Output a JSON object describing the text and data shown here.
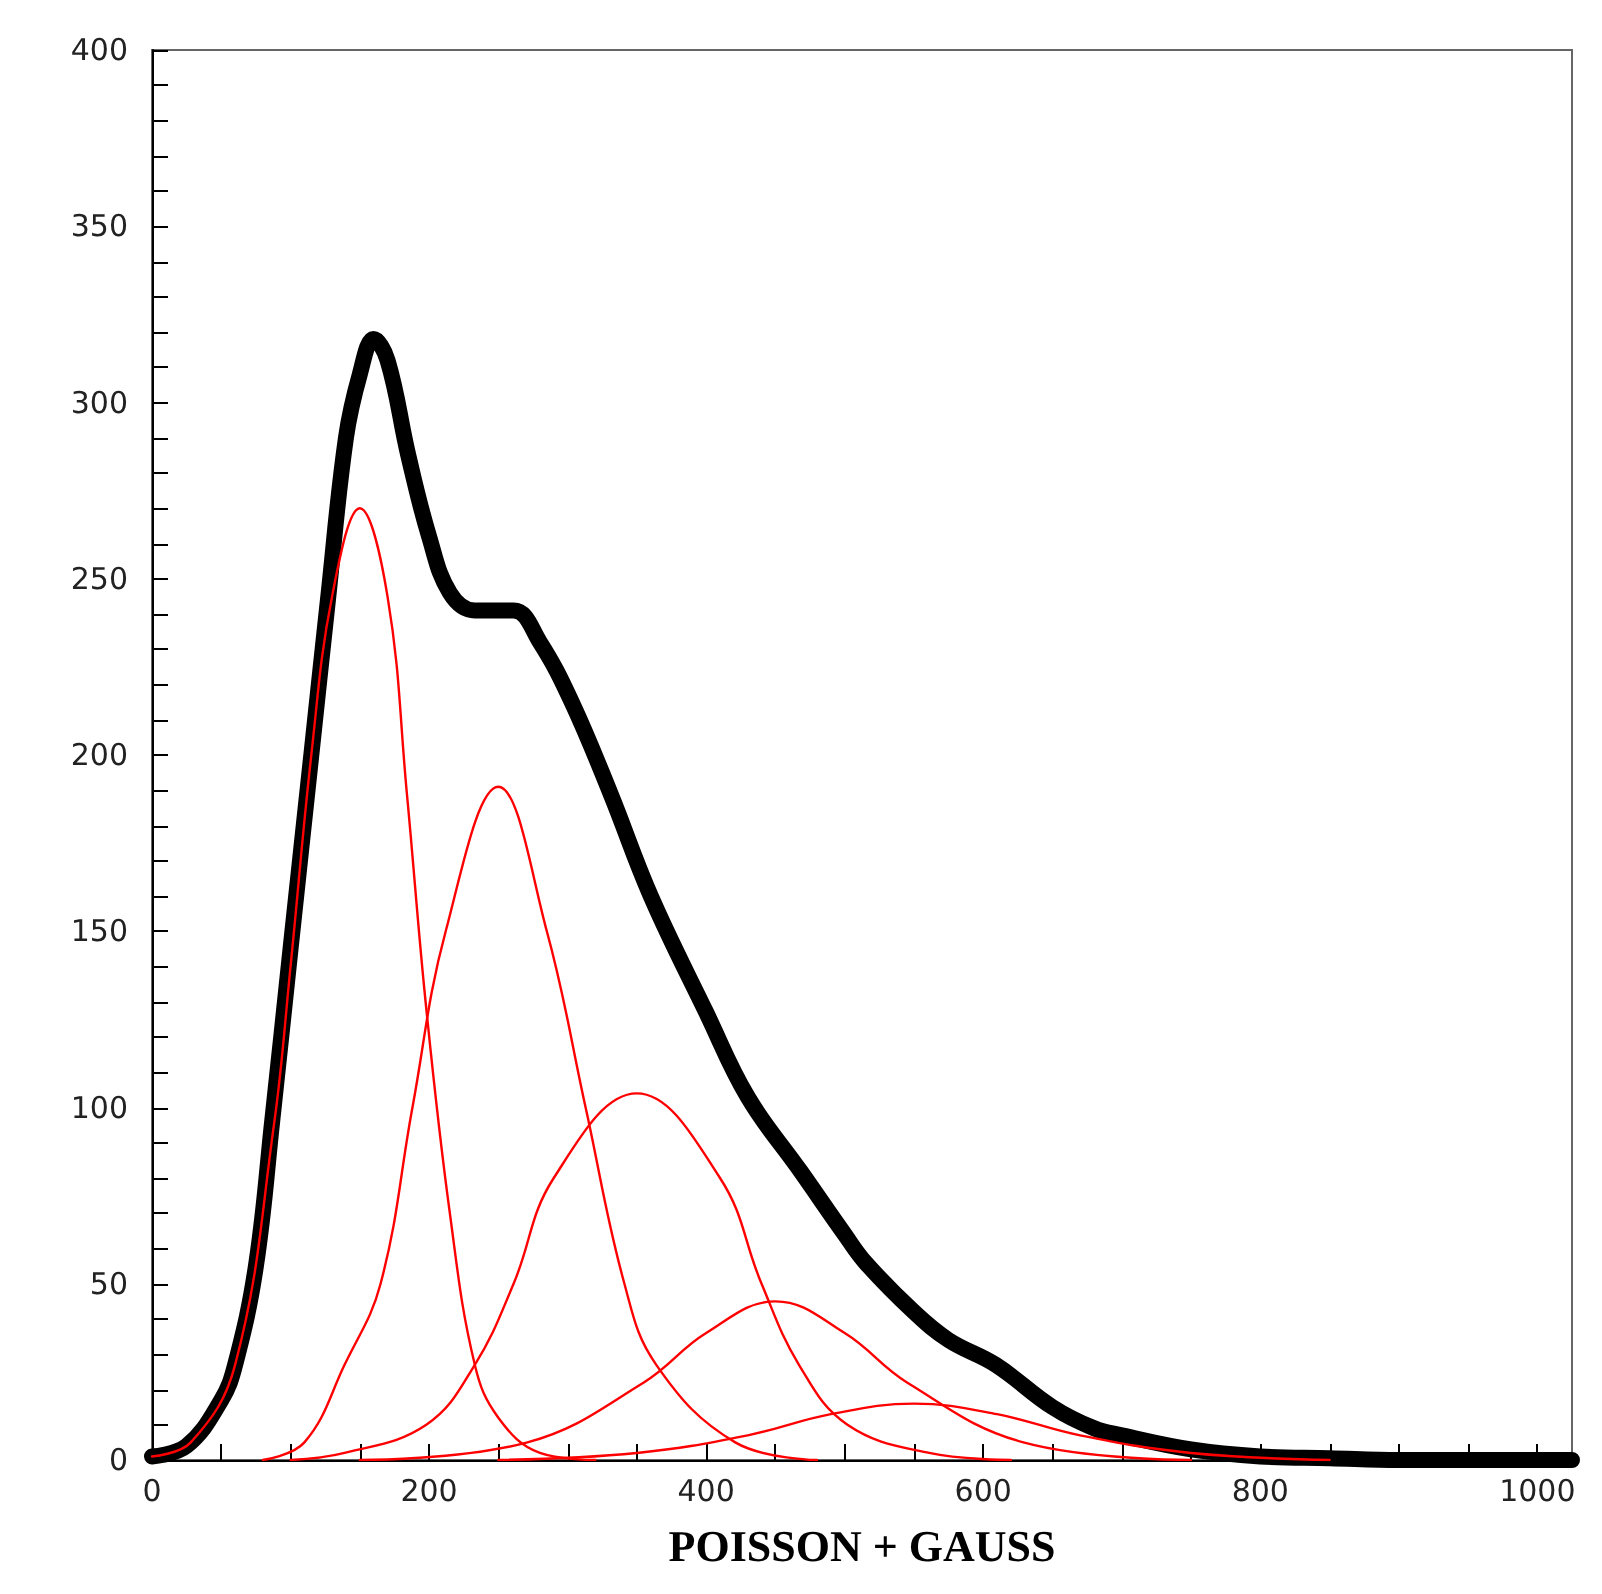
{
  "chart_data": {
    "type": "line",
    "xlabel": "POISSON + GAUSS",
    "xlim": [
      0,
      1025
    ],
    "ylim": [
      0,
      400
    ],
    "xticks": [
      0,
      {
        "value": 50,
        "label": null
      },
      200,
      {
        "value": 100,
        "label": null
      },
      {
        "value": 150,
        "label": null
      },
      {
        "value": 250,
        "label": null
      },
      {
        "value": 300,
        "label": null
      },
      {
        "value": 350,
        "label": null
      },
      400,
      {
        "value": 450,
        "label": null
      },
      {
        "value": 500,
        "label": null
      },
      {
        "value": 550,
        "label": null
      },
      600,
      {
        "value": 650,
        "label": null
      },
      {
        "value": 700,
        "label": null
      },
      {
        "value": 750,
        "label": null
      },
      800,
      {
        "value": 850,
        "label": null
      },
      {
        "value": 900,
        "label": null
      },
      {
        "value": 950,
        "label": null
      },
      1000
    ],
    "yticks": [
      0,
      {
        "value": 10,
        "label": null
      },
      {
        "value": 20,
        "label": null
      },
      {
        "value": 30,
        "label": null
      },
      {
        "value": 40,
        "label": null
      },
      50,
      {
        "value": 60,
        "label": null
      },
      {
        "value": 70,
        "label": null
      },
      {
        "value": 80,
        "label": null
      },
      {
        "value": 90,
        "label": null
      },
      100,
      {
        "value": 110,
        "label": null
      },
      {
        "value": 120,
        "label": null
      },
      {
        "value": 130,
        "label": null
      },
      {
        "value": 140,
        "label": null
      },
      150,
      {
        "value": 160,
        "label": null
      },
      {
        "value": 170,
        "label": null
      },
      {
        "value": 180,
        "label": null
      },
      {
        "value": 190,
        "label": null
      },
      200,
      {
        "value": 210,
        "label": null
      },
      {
        "value": 220,
        "label": null
      },
      {
        "value": 230,
        "label": null
      },
      {
        "value": 240,
        "label": null
      },
      250,
      {
        "value": 260,
        "label": null
      },
      {
        "value": 270,
        "label": null
      },
      {
        "value": 280,
        "label": null
      },
      {
        "value": 290,
        "label": null
      },
      300,
      {
        "value": 310,
        "label": null
      },
      {
        "value": 320,
        "label": null
      },
      {
        "value": 330,
        "label": null
      },
      {
        "value": 340,
        "label": null
      },
      350,
      {
        "value": 360,
        "label": null
      },
      {
        "value": 370,
        "label": null
      },
      {
        "value": 380,
        "label": null
      },
      {
        "value": 390,
        "label": null
      },
      400
    ],
    "grid": false,
    "marker": "none",
    "line_style": "solid",
    "series": [
      {
        "color": "#000000",
        "x": [
          0,
          25,
          50,
          60,
          75,
          87,
          100,
          115,
          127,
          140,
          150,
          160,
          170,
          185,
          200,
          215,
          233,
          261,
          280,
          303,
          331,
          360,
          400,
          430,
          468,
          500,
          515,
          550,
          575,
          609,
          650,
          680,
          700,
          750,
          800,
          850,
          900,
          1025
        ],
        "values": [
          1,
          4,
          17,
          27,
          55,
          97,
          145,
          200,
          244,
          290,
          308,
          318,
          312,
          285,
          262,
          246,
          241,
          241,
          232,
          215,
          189,
          160,
          127,
          103,
          82,
          64,
          56,
          42,
          34,
          27,
          15,
          9,
          7,
          3,
          1,
          0.5,
          0,
          0
        ]
      },
      {
        "color": "#ff0000",
        "x": [
          0,
          28,
          60,
          88,
          100,
          115,
          130,
          150,
          170,
          184,
          198,
          215,
          233,
          250,
          280,
          320
        ],
        "values": [
          1,
          5,
          27,
          95,
          140,
          200,
          245,
          270,
          245,
          189,
          128,
          70,
          27,
          12,
          2,
          0
        ]
      },
      {
        "color": "#ff0000",
        "x": [
          80,
          110,
          139,
          165,
          188,
          212,
          250,
          285,
          313,
          341,
          364,
          421,
          480
        ],
        "values": [
          0,
          5,
          27,
          50,
          100,
          150,
          191,
          150,
          100,
          50,
          27,
          5,
          0
        ]
      },
      {
        "color": "#ff0000",
        "x": [
          100,
          139,
          198,
          233,
          261,
          290,
          350,
          410,
          440,
          467,
          502,
          561,
          620
        ],
        "values": [
          0,
          2,
          10,
          27,
          50,
          80,
          104,
          80,
          50,
          27,
          10,
          2,
          0
        ]
      },
      {
        "color": "#ff0000",
        "x": [
          150,
          271,
          355,
          400,
          450,
          500,
          545,
          629,
          750
        ],
        "values": [
          0,
          5,
          22,
          36,
          45,
          36,
          22,
          5,
          0
        ]
      },
      {
        "color": "#ff0000",
        "x": [
          250,
          350,
          430,
          490,
          550,
          610,
          670,
          750,
          850
        ],
        "values": [
          0,
          2,
          7,
          13,
          16,
          13,
          7,
          2,
          0
        ]
      }
    ]
  }
}
